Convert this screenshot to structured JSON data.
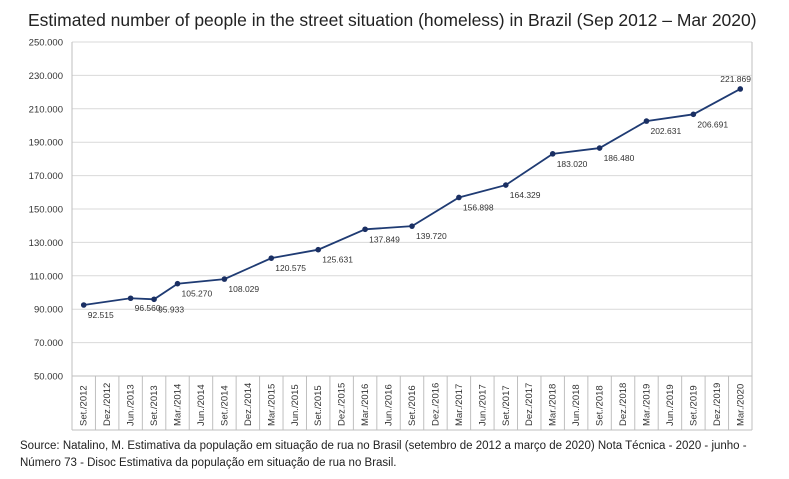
{
  "title": "Estimated number of people in the street situation (homeless) in Brazil (Sep 2012 – Mar 2020)",
  "source": "Source: Natalino, M. Estimativa da população em situação de rua no Brasil (setembro de 2012 a março de 2020) Nota Técnica - 2020 - junho - Número 73 - Disoc Estimativa da população em situação de rua no Brasil.",
  "chart_data": {
    "type": "line",
    "categories": [
      "Set./2012",
      "Dez./2012",
      "Jun./2013",
      "Set./2013",
      "Mar./2014",
      "Jun./2014",
      "Set./2014",
      "Dez./2014",
      "Mar./2015",
      "Jun./2015",
      "Set./2015",
      "Dez./2015",
      "Mar./2016",
      "Jun./2016",
      "Set./2016",
      "Dez./2016",
      "Mar./2017",
      "Jun./2017",
      "Set./2017",
      "Dez./2017",
      "Mar./2018",
      "Jun./2018",
      "Set./2018",
      "Dez./2018",
      "Mar./2019",
      "Jun./2019",
      "Set./2019",
      "Dez./2019",
      "Mar./2020"
    ],
    "points": [
      {
        "category": "Set./2012",
        "value": 92515,
        "label": "92.515"
      },
      {
        "category": "Jun./2013",
        "value": 96560,
        "label": "96.560"
      },
      {
        "category": "Set./2013",
        "value": 95933,
        "label": "95.933"
      },
      {
        "category": "Mar./2014",
        "value": 105270,
        "label": "105.270"
      },
      {
        "category": "Set./2014",
        "value": 108029,
        "label": "108.029"
      },
      {
        "category": "Mar./2015",
        "value": 120575,
        "label": "120.575"
      },
      {
        "category": "Set./2015",
        "value": 125631,
        "label": "125.631"
      },
      {
        "category": "Mar./2016",
        "value": 137849,
        "label": "137.849"
      },
      {
        "category": "Set./2016",
        "value": 139720,
        "label": "139.720"
      },
      {
        "category": "Mar./2017",
        "value": 156898,
        "label": "156.898"
      },
      {
        "category": "Set./2017",
        "value": 164329,
        "label": "164.329"
      },
      {
        "category": "Mar./2018",
        "value": 183020,
        "label": "183.020"
      },
      {
        "category": "Set./2018",
        "value": 186480,
        "label": "186.480"
      },
      {
        "category": "Mar./2019",
        "value": 202631,
        "label": "202.631"
      },
      {
        "category": "Set./2019",
        "value": 206691,
        "label": "206.691"
      },
      {
        "category": "Mar./2020",
        "value": 221869,
        "label": "221.869"
      }
    ],
    "yticks": [
      {
        "value": 50000,
        "label": "50.000"
      },
      {
        "value": 70000,
        "label": "70.000"
      },
      {
        "value": 90000,
        "label": "90.000"
      },
      {
        "value": 110000,
        "label": "110.000"
      },
      {
        "value": 130000,
        "label": "130.000"
      },
      {
        "value": 150000,
        "label": "150.000"
      },
      {
        "value": 170000,
        "label": "170.000"
      },
      {
        "value": 190000,
        "label": "190.000"
      },
      {
        "value": 210000,
        "label": "210.000"
      },
      {
        "value": 230000,
        "label": "230.000"
      },
      {
        "value": 250000,
        "label": "250.000"
      }
    ],
    "ylim": [
      50000,
      250000
    ],
    "grid": true,
    "legend": "none",
    "colors": {
      "line": "#1f3b73",
      "marker": "#1a2f63",
      "grid": "#d9d9d9",
      "axis": "#bfbfbf"
    }
  }
}
